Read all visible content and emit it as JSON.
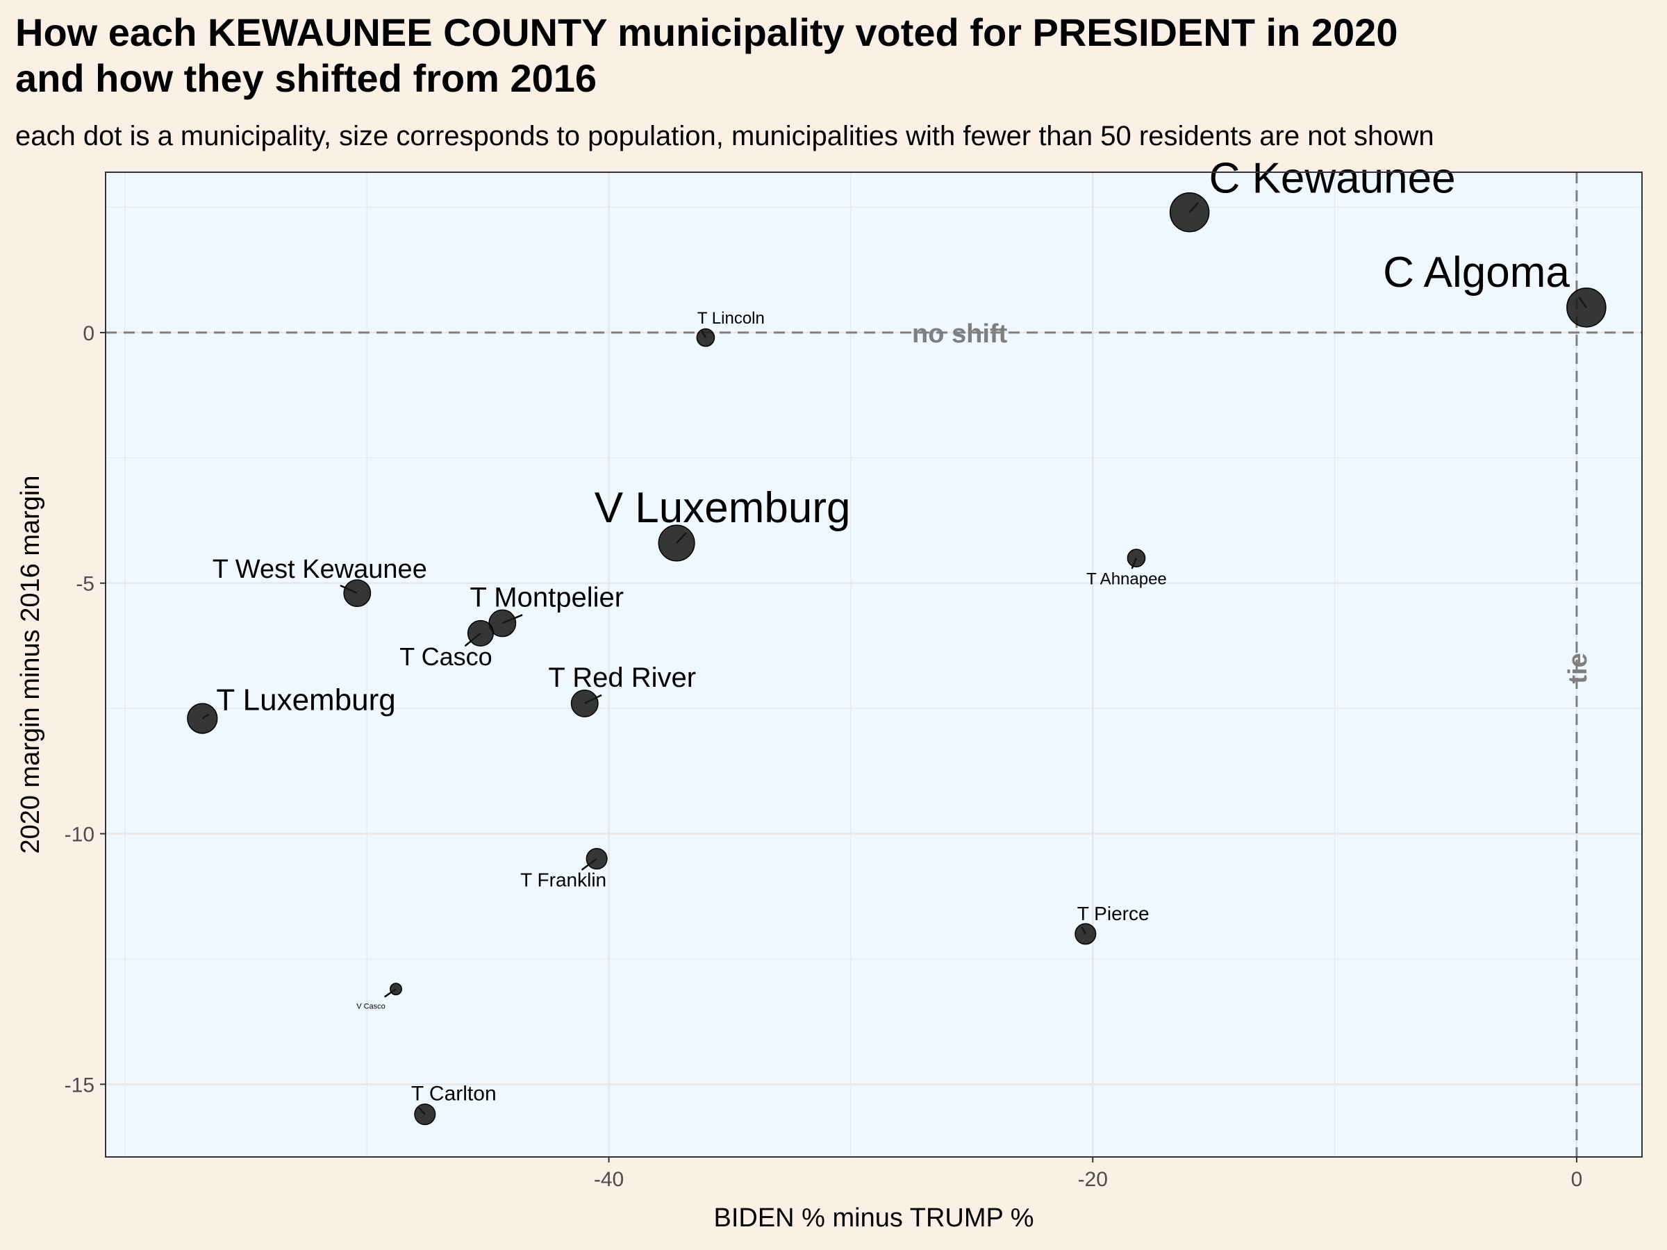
{
  "header": {
    "title_line1": "How each KEWAUNEE COUNTY municipality voted for PRESIDENT in 2020",
    "title_line2": "and how they shifted from 2016",
    "subtitle": "each dot is a municipality, size corresponds to population, municipalities with fewer than 50 residents are not shown"
  },
  "chart_data": {
    "type": "scatter",
    "title": "How each KEWAUNEE COUNTY municipality voted for PRESIDENT in 2020 and how they shifted from 2016",
    "subtitle": "each dot is a municipality, size corresponds to population, municipalities with fewer than 50 residents are not shown",
    "xlabel": "BIDEN % minus TRUMP %",
    "ylabel": "2020 margin minus 2016 margin",
    "xlim": [
      -60.8,
      2.7
    ],
    "ylim": [
      -16.45,
      3.2
    ],
    "x_ticks": [
      -40,
      -20,
      0
    ],
    "x_tick_labels": [
      "-40",
      "-20",
      "0"
    ],
    "y_ticks": [
      0,
      -5,
      -10,
      -15
    ],
    "y_tick_labels": [
      "0",
      "-5",
      "-10",
      "-15"
    ],
    "grid": true,
    "reference_lines": [
      {
        "axis": "y",
        "value": 0,
        "label": "no shift"
      },
      {
        "axis": "x",
        "value": 0,
        "label": "tie"
      }
    ],
    "colors": {
      "panel_background": "#f0f8ff",
      "page_background": "#faf0e6",
      "point": "#1a1a1a",
      "reference_line": "#7f7f7f",
      "grid": "#e6e6e6"
    },
    "points": [
      {
        "label": "C Kewaunee",
        "x": -16.0,
        "y": 2.4,
        "size": 5
      },
      {
        "label": "C Algoma",
        "x": 0.4,
        "y": 0.5,
        "size": 5
      },
      {
        "label": "T Lincoln",
        "x": -36.0,
        "y": -0.1,
        "size": 1.5
      },
      {
        "label": "V Luxemburg",
        "x": -37.2,
        "y": -4.2,
        "size": 4.5
      },
      {
        "label": "T Ahnapee",
        "x": -18.2,
        "y": -4.5,
        "size": 1.5
      },
      {
        "label": "T West Kewaunee",
        "x": -50.4,
        "y": -5.2,
        "size": 3
      },
      {
        "label": "T Montpelier",
        "x": -44.4,
        "y": -5.8,
        "size": 3
      },
      {
        "label": "T Casco",
        "x": -45.3,
        "y": -6.0,
        "size": 2.8
      },
      {
        "label": "T Red River",
        "x": -41.0,
        "y": -7.4,
        "size": 3
      },
      {
        "label": "T Luxemburg",
        "x": -56.8,
        "y": -7.7,
        "size": 3.5
      },
      {
        "label": "T Franklin",
        "x": -40.5,
        "y": -10.5,
        "size": 2
      },
      {
        "label": "T Pierce",
        "x": -20.3,
        "y": -12.0,
        "size": 2
      },
      {
        "label": "V Casco",
        "x": -48.8,
        "y": -13.1,
        "size": 0.5
      },
      {
        "label": "T Carlton",
        "x": -47.6,
        "y": -15.6,
        "size": 2
      }
    ]
  }
}
